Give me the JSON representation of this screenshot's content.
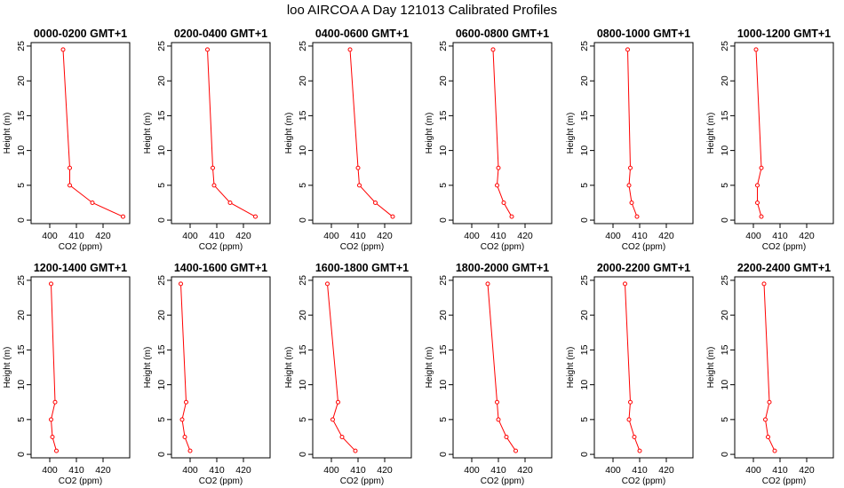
{
  "figure": {
    "title": "loo AIRCOA A  Day 121013  Calibrated Profiles"
  },
  "chart_data": [
    {
      "type": "line",
      "title": "0000-0200 GMT+1",
      "xlabel": "CO2 (ppm)",
      "ylabel": "Height (m)",
      "xlim": [
        393,
        430
      ],
      "ylim": [
        -0.5,
        25.5
      ],
      "xticks": [
        400,
        410,
        420
      ],
      "yticks": [
        0,
        5,
        10,
        15,
        20,
        25
      ],
      "color": "#ff0000",
      "grid": false,
      "series": [
        {
          "x": [
            427.5,
            416,
            407.5,
            407.5,
            405
          ],
          "y": [
            0.5,
            2.5,
            5,
            7.5,
            24.5
          ]
        }
      ]
    },
    {
      "type": "line",
      "title": "0200-0400 GMT+1",
      "xlabel": "CO2 (ppm)",
      "ylabel": "Height (m)",
      "xlim": [
        393,
        430
      ],
      "ylim": [
        -0.5,
        25.5
      ],
      "xticks": [
        400,
        410,
        420
      ],
      "yticks": [
        0,
        5,
        10,
        15,
        20,
        25
      ],
      "color": "#ff0000",
      "grid": false,
      "series": [
        {
          "x": [
            424.5,
            415,
            409,
            408.5,
            406.5
          ],
          "y": [
            0.5,
            2.5,
            5,
            7.5,
            24.5
          ]
        }
      ]
    },
    {
      "type": "line",
      "title": "0400-0600 GMT+1",
      "xlabel": "CO2 (ppm)",
      "ylabel": "Height (m)",
      "xlim": [
        393,
        430
      ],
      "ylim": [
        -0.5,
        25.5
      ],
      "xticks": [
        400,
        410,
        420
      ],
      "yticks": [
        0,
        5,
        10,
        15,
        20,
        25
      ],
      "color": "#ff0000",
      "grid": false,
      "series": [
        {
          "x": [
            423,
            416.5,
            410.5,
            410,
            407
          ],
          "y": [
            0.5,
            2.5,
            5,
            7.5,
            24.5
          ]
        }
      ]
    },
    {
      "type": "line",
      "title": "0600-0800 GMT+1",
      "xlabel": "CO2 (ppm)",
      "ylabel": "Height (m)",
      "xlim": [
        393,
        430
      ],
      "ylim": [
        -0.5,
        25.5
      ],
      "xticks": [
        400,
        410,
        420
      ],
      "yticks": [
        0,
        5,
        10,
        15,
        20,
        25
      ],
      "color": "#ff0000",
      "grid": false,
      "series": [
        {
          "x": [
            415,
            412,
            409.5,
            410,
            408
          ],
          "y": [
            0.5,
            2.5,
            5,
            7.5,
            24.5
          ]
        }
      ]
    },
    {
      "type": "line",
      "title": "0800-1000 GMT+1",
      "xlabel": "CO2 (ppm)",
      "ylabel": "Height (m)",
      "xlim": [
        393,
        430
      ],
      "ylim": [
        -0.5,
        25.5
      ],
      "xticks": [
        400,
        410,
        420
      ],
      "yticks": [
        0,
        5,
        10,
        15,
        20,
        25
      ],
      "color": "#ff0000",
      "grid": false,
      "series": [
        {
          "x": [
            409,
            407,
            406,
            406.5,
            405.5
          ],
          "y": [
            0.5,
            2.5,
            5,
            7.5,
            24.5
          ]
        }
      ]
    },
    {
      "type": "line",
      "title": "1000-1200 GMT+1",
      "xlabel": "CO2 (ppm)",
      "ylabel": "Height (m)",
      "xlim": [
        393,
        430
      ],
      "ylim": [
        -0.5,
        25.5
      ],
      "xticks": [
        400,
        410,
        420
      ],
      "yticks": [
        0,
        5,
        10,
        15,
        20,
        25
      ],
      "color": "#ff0000",
      "grid": false,
      "series": [
        {
          "x": [
            403,
            401.5,
            401.5,
            403,
            401
          ]
        },
        {
          "x": [],
          "y": []
        }
      ]
    },
    {
      "type": "line",
      "title": "1200-1400 GMT+1",
      "xlabel": "CO2 (ppm)",
      "ylabel": "Height (m)",
      "xlim": [
        393,
        430
      ],
      "ylim": [
        -0.5,
        25.5
      ],
      "xticks": [
        400,
        410,
        420
      ],
      "yticks": [
        0,
        5,
        10,
        15,
        20,
        25
      ],
      "color": "#ff0000",
      "grid": false,
      "series": [
        {
          "x": [
            402.5,
            401,
            400.5,
            402,
            400.5
          ],
          "y": [
            0.5,
            2.5,
            5,
            7.5,
            24.5
          ]
        }
      ]
    },
    {
      "type": "line",
      "title": "1400-1600 GMT+1",
      "xlabel": "CO2 (ppm)",
      "ylabel": "Height (m)",
      "xlim": [
        393,
        430
      ],
      "ylim": [
        -0.5,
        25.5
      ],
      "xticks": [
        400,
        410,
        420
      ],
      "yticks": [
        0,
        5,
        10,
        15,
        20,
        25
      ],
      "color": "#ff0000",
      "grid": false,
      "series": [
        {
          "x": [
            400,
            398,
            397,
            398.5,
            396.5
          ],
          "y": [
            0.5,
            2.5,
            5,
            7.5,
            24.5
          ]
        }
      ]
    },
    {
      "type": "line",
      "title": "1600-1800 GMT+1",
      "xlabel": "CO2 (ppm)",
      "ylabel": "Height (m)",
      "xlim": [
        393,
        430
      ],
      "ylim": [
        -0.5,
        25.5
      ],
      "xticks": [
        400,
        410,
        420
      ],
      "yticks": [
        0,
        5,
        10,
        15,
        20,
        25
      ],
      "color": "#ff0000",
      "grid": false,
      "series": [
        {
          "x": [
            409,
            404,
            400.5,
            402.5,
            398.5
          ],
          "y": [
            0.5,
            2.5,
            5,
            7.5,
            24.5
          ]
        }
      ]
    },
    {
      "type": "line",
      "title": "1800-2000 GMT+1",
      "xlabel": "CO2 (ppm)",
      "ylabel": "Height (m)",
      "xlim": [
        393,
        430
      ],
      "ylim": [
        -0.5,
        25.5
      ],
      "xticks": [
        400,
        410,
        420
      ],
      "yticks": [
        0,
        5,
        10,
        15,
        20,
        25
      ],
      "color": "#ff0000",
      "grid": false,
      "series": [
        {
          "x": [
            416.5,
            413,
            410,
            409.5,
            406
          ],
          "y": [
            0.5,
            2.5,
            5,
            7.5,
            24.5
          ]
        }
      ]
    },
    {
      "type": "line",
      "title": "2000-2200 GMT+1",
      "xlabel": "CO2 (ppm)",
      "ylabel": "Height (m)",
      "xlim": [
        393,
        430
      ],
      "ylim": [
        -0.5,
        25.5
      ],
      "xticks": [
        400,
        410,
        420
      ],
      "yticks": [
        0,
        5,
        10,
        15,
        20,
        25
      ],
      "color": "#ff0000",
      "grid": false,
      "series": [
        {
          "x": [
            410,
            408,
            406,
            406.5,
            404.5
          ],
          "y": [
            0.5,
            2.5,
            5,
            7.5,
            24.5
          ]
        }
      ]
    },
    {
      "type": "line",
      "title": "2200-2400 GMT+1",
      "xlabel": "CO2 (ppm)",
      "ylabel": "Height (m)",
      "xlim": [
        393,
        430
      ],
      "ylim": [
        -0.5,
        25.5
      ],
      "xticks": [
        400,
        410,
        420
      ],
      "yticks": [
        0,
        5,
        10,
        15,
        20,
        25
      ],
      "color": "#ff0000",
      "grid": false,
      "series": [
        {
          "x": [
            408,
            405.5,
            404.5,
            406,
            404
          ],
          "y": [
            0.5,
            2.5,
            5,
            7.5,
            24.5
          ]
        }
      ]
    }
  ]
}
